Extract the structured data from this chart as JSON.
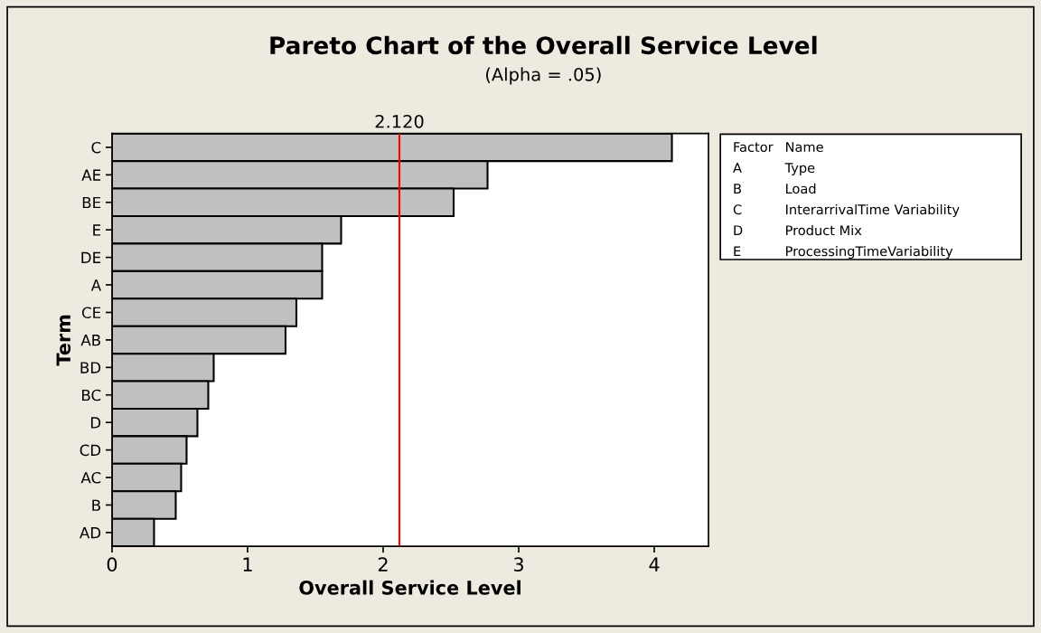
{
  "chart_data": {
    "type": "bar",
    "orientation": "horizontal",
    "title": "Pareto Chart of the Overall Service Level",
    "subtitle": "(Alpha = .05)",
    "xlabel": "Overall Service Level",
    "ylabel": "Term",
    "categories": [
      "C",
      "AE",
      "BE",
      "E",
      "DE",
      "A",
      "CE",
      "AB",
      "BD",
      "BC",
      "D",
      "CD",
      "AC",
      "B",
      "AD"
    ],
    "values": [
      4.13,
      2.77,
      2.52,
      1.69,
      1.55,
      1.55,
      1.36,
      1.28,
      0.75,
      0.71,
      0.63,
      0.55,
      0.51,
      0.47,
      0.31
    ],
    "color": "#c0c0c0",
    "xlim": [
      0,
      4.4
    ],
    "xticks": [
      0,
      1,
      2,
      3,
      4
    ],
    "ref_lines": [
      {
        "axis": "x",
        "value": 2.12,
        "label": "2.120",
        "color": "#ff0000"
      }
    ],
    "annotations": [
      "Factor",
      "Name",
      "A",
      "Type",
      "B",
      "Load",
      "C",
      "InterarrivalTime Variability",
      "D",
      "Product Mix",
      "E",
      "ProcessingTimeVariability"
    ],
    "grid": false
  }
}
